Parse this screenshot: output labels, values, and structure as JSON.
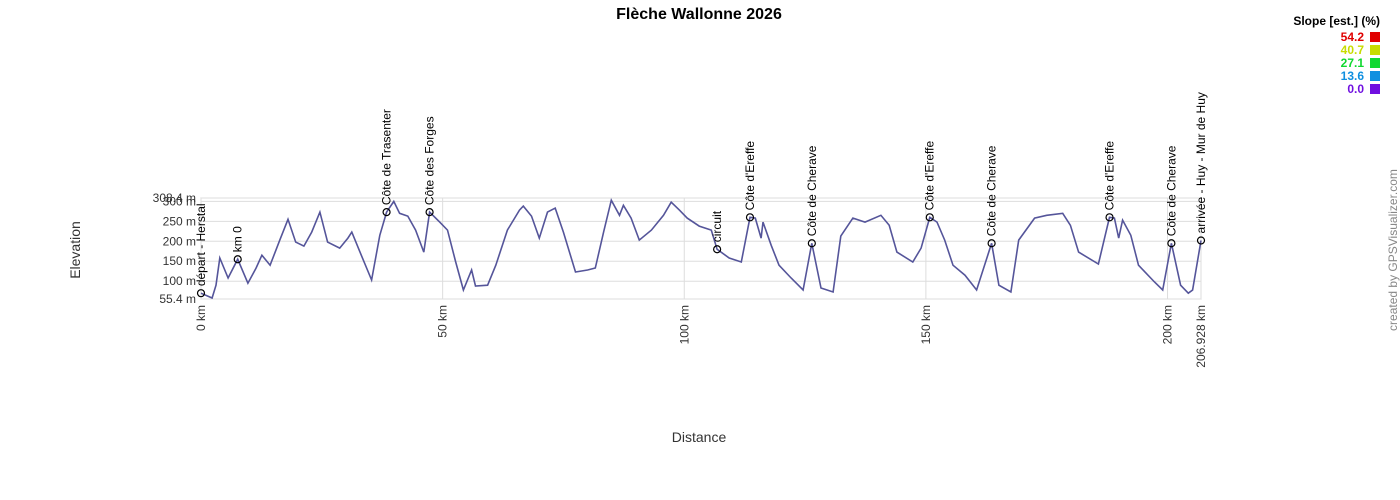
{
  "chart_data": {
    "type": "line",
    "title": "Flèche Wallonne 2026",
    "x_label": "Distance",
    "y_label": "Elevation",
    "credit": "created by GPSVisualizer.com",
    "xlim": [
      0,
      206.928
    ],
    "ylim": [
      55.4,
      308.4
    ],
    "xticks": [
      {
        "value": 0,
        "label": "0 km"
      },
      {
        "value": 50,
        "label": "50 km"
      },
      {
        "value": 100,
        "label": "100 km"
      },
      {
        "value": 150,
        "label": "150 km"
      },
      {
        "value": 200,
        "label": "200 km"
      },
      {
        "value": 206.928,
        "label": "206.928 km"
      }
    ],
    "yticks": [
      {
        "value": 55.4,
        "label": "55.4 m"
      },
      {
        "value": 100,
        "label": "100 m"
      },
      {
        "value": 150,
        "label": "150 m"
      },
      {
        "value": 200,
        "label": "200 m"
      },
      {
        "value": 250,
        "label": "250 m"
      },
      {
        "value": 300,
        "label": "300 m"
      },
      {
        "value": 308.4,
        "label": "308.4 m"
      }
    ],
    "grid": true,
    "x": [
      0,
      2.3,
      3.1,
      3.9,
      5.6,
      7.6,
      9.7,
      11.4,
      12.6,
      14.3,
      16.3,
      18.0,
      19.6,
      21.3,
      22.9,
      24.6,
      26.2,
      28.7,
      30.4,
      31.2,
      32.9,
      35.3,
      37.0,
      38.4,
      39.9,
      41.1,
      42.8,
      44.4,
      46.1,
      47.3,
      49.4,
      51.0,
      52.7,
      54.3,
      56.0,
      56.8,
      59.3,
      61.0,
      63.4,
      65.9,
      66.7,
      68.4,
      70.0,
      71.7,
      73.3,
      75.0,
      77.5,
      80.0,
      81.6,
      83.3,
      84.9,
      86.6,
      87.4,
      89.0,
      90.7,
      93.2,
      95.7,
      97.3,
      99.0,
      100.6,
      103.1,
      105.6,
      106.8,
      109.3,
      111.8,
      113.6,
      114.7,
      115.9,
      116.3,
      118.0,
      119.6,
      122.1,
      124.6,
      126.4,
      128.3,
      130.8,
      132.4,
      134.9,
      137.4,
      140.7,
      142.4,
      144.0,
      147.3,
      149.0,
      150.8,
      152.3,
      153.9,
      155.6,
      158.1,
      160.5,
      163.6,
      165.1,
      167.6,
      169.2,
      172.5,
      175.0,
      178.3,
      179.9,
      181.6,
      185.7,
      188.0,
      189.0,
      189.9,
      190.7,
      192.4,
      194.0,
      197.3,
      199.0,
      200.8,
      202.7,
      204.3,
      205.2,
      206.928
    ],
    "series": [
      {
        "color": "#55559a",
        "values": [
          70,
          58,
          90,
          158,
          108,
          155,
          95,
          133,
          165,
          140,
          203,
          255,
          198,
          188,
          223,
          273,
          198,
          183,
          208,
          223,
          173,
          103,
          215,
          273,
          300,
          270,
          263,
          228,
          173,
          273,
          248,
          228,
          148,
          78,
          128,
          88,
          90,
          140,
          228,
          278,
          288,
          263,
          208,
          273,
          283,
          223,
          123,
          128,
          133,
          223,
          303,
          265,
          290,
          258,
          203,
          228,
          265,
          298,
          278,
          258,
          238,
          228,
          180,
          158,
          148,
          260,
          258,
          208,
          248,
          190,
          140,
          108,
          78,
          195,
          83,
          73,
          213,
          258,
          248,
          265,
          240,
          173,
          148,
          183,
          260,
          248,
          203,
          140,
          115,
          78,
          195,
          90,
          73,
          203,
          258,
          265,
          270,
          240,
          173,
          143,
          260,
          258,
          208,
          253,
          215,
          140,
          98,
          78,
          195,
          90,
          70,
          78,
          202
        ]
      }
    ],
    "waypoints": [
      {
        "label": "départ - Herstal",
        "x": 0,
        "y": 70
      },
      {
        "label": "km 0",
        "x": 7.6,
        "y": 155
      },
      {
        "label": "Côte de Trasenter",
        "x": 38.4,
        "y": 273
      },
      {
        "label": "Côte des Forges",
        "x": 47.3,
        "y": 273
      },
      {
        "label": "circuit",
        "x": 106.8,
        "y": 180
      },
      {
        "label": "Côte d'Ereffe",
        "x": 113.6,
        "y": 260
      },
      {
        "label": "Côte de Cherave",
        "x": 126.4,
        "y": 195
      },
      {
        "label": "Côte d'Ereffe",
        "x": 150.8,
        "y": 260
      },
      {
        "label": "Côte de Cherave",
        "x": 163.6,
        "y": 195
      },
      {
        "label": "Côte d'Ereffe",
        "x": 188.0,
        "y": 260
      },
      {
        "label": "Côte de Cherave",
        "x": 200.8,
        "y": 195
      },
      {
        "label": "arrivée - Huy - Mur de Huy",
        "x": 206.928,
        "y": 202
      }
    ],
    "slope_legend": {
      "title": "Slope [est.] (%)",
      "items": [
        {
          "value": 54.2,
          "color": "#e00000"
        },
        {
          "value": 40.7,
          "color": "#c8dc00"
        },
        {
          "value": 27.1,
          "color": "#10d830"
        },
        {
          "value": 13.6,
          "color": "#1090e0"
        },
        {
          "value": 0,
          "label": "0.0",
          "color": "#7010e0"
        }
      ]
    }
  }
}
